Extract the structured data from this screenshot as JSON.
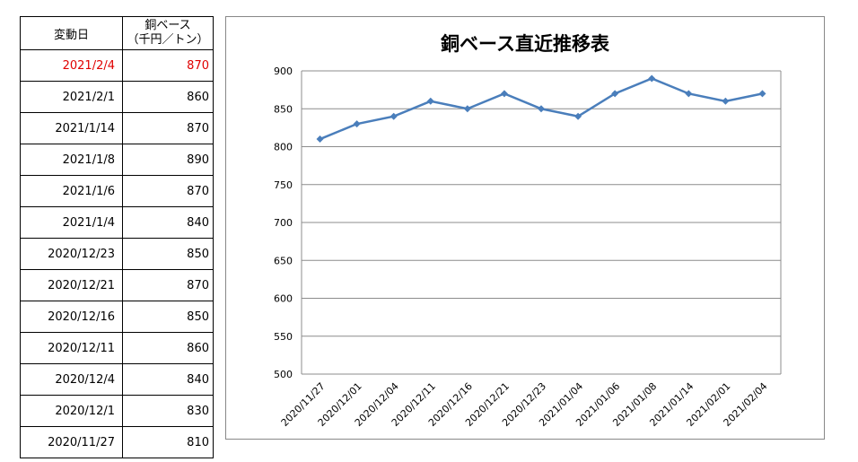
{
  "table": {
    "header_date": "変動日",
    "header_value_line1": "銅ベース",
    "header_value_line2": "（千円／トン）",
    "highlight_color": "#e00000",
    "rows": [
      {
        "date": "2021/2/4",
        "value": "870",
        "highlight": true
      },
      {
        "date": "2021/2/1",
        "value": "860"
      },
      {
        "date": "2021/1/14",
        "value": "870"
      },
      {
        "date": "2021/1/8",
        "value": "890"
      },
      {
        "date": "2021/1/6",
        "value": "870"
      },
      {
        "date": "2021/1/4",
        "value": "840"
      },
      {
        "date": "2020/12/23",
        "value": "850"
      },
      {
        "date": "2020/12/21",
        "value": "870"
      },
      {
        "date": "2020/12/16",
        "value": "850"
      },
      {
        "date": "2020/12/11",
        "value": "860"
      },
      {
        "date": "2020/12/4",
        "value": "840"
      },
      {
        "date": "2020/12/1",
        "value": "830"
      },
      {
        "date": "2020/11/27",
        "value": "810"
      }
    ]
  },
  "chart_data": {
    "type": "line",
    "title": "銅ベース直近推移表",
    "xlabel": "",
    "ylabel": "",
    "x": [
      "2020/11/27",
      "2020/12/01",
      "2020/12/04",
      "2020/12/11",
      "2020/12/16",
      "2020/12/21",
      "2020/12/23",
      "2021/01/04",
      "2021/01/06",
      "2021/01/08",
      "2021/01/14",
      "2021/02/01",
      "2021/02/04"
    ],
    "series": [
      {
        "values": [
          810,
          830,
          840,
          860,
          850,
          870,
          850,
          840,
          870,
          890,
          870,
          860,
          870
        ],
        "color": "#4a7ebb"
      }
    ],
    "ylim": [
      500,
      900
    ],
    "yticks": [
      500,
      550,
      600,
      650,
      700,
      750,
      800,
      850,
      900
    ],
    "grid": true,
    "marker": "diamond",
    "legend": "none"
  }
}
